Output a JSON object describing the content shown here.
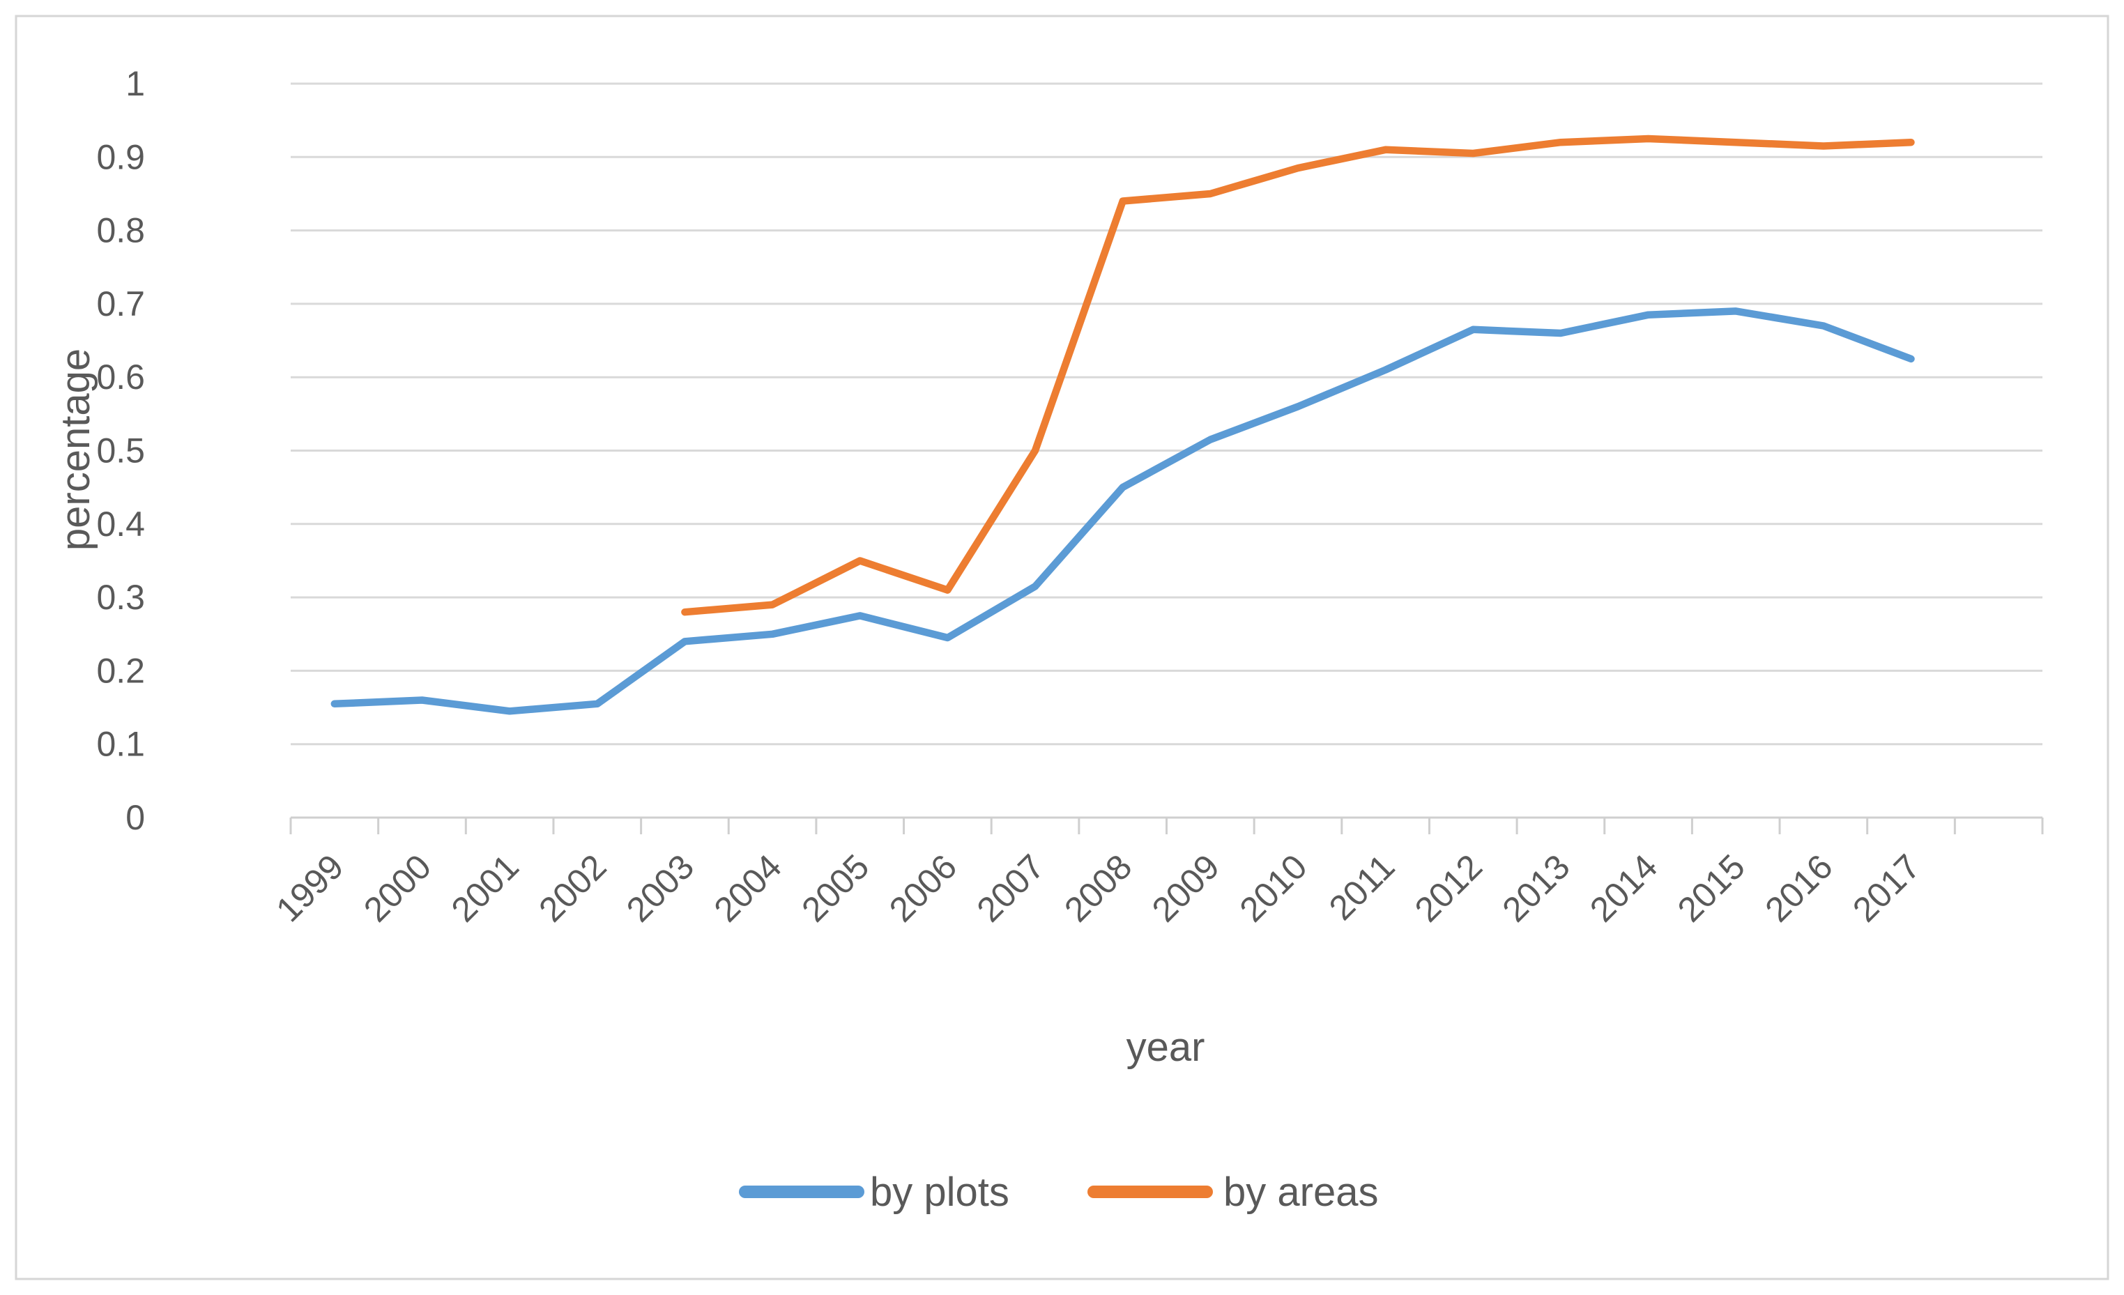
{
  "figure": {
    "background": "#ffffff",
    "border_color": "#d6d6d6"
  },
  "chart_data": {
    "type": "line",
    "title": "",
    "xlabel": "year",
    "ylabel": "percentage",
    "categories": [
      "1999",
      "2000",
      "2001",
      "2002",
      "2003",
      "2004",
      "2005",
      "2006",
      "2007",
      "2008",
      "2009",
      "2010",
      "2011",
      "2012",
      "2013",
      "2014",
      "2015",
      "2016",
      "2017"
    ],
    "series": [
      {
        "name": "by plots",
        "color": "#5B9BD5",
        "values": [
          0.155,
          0.16,
          0.145,
          0.155,
          0.24,
          0.25,
          0.275,
          0.245,
          0.315,
          0.45,
          0.515,
          0.56,
          0.61,
          0.665,
          0.66,
          0.685,
          0.69,
          0.67,
          0.625
        ]
      },
      {
        "name": "by areas",
        "color": "#ED7D31",
        "values": [
          null,
          null,
          null,
          null,
          0.28,
          0.29,
          0.35,
          0.31,
          0.5,
          0.84,
          0.85,
          0.885,
          0.91,
          0.905,
          0.92,
          0.925,
          0.92,
          0.915,
          0.92
        ]
      }
    ],
    "ylim": [
      0,
      1
    ],
    "ytick_step": 0.1,
    "ytick_labels": [
      "0",
      "0.1",
      "0.2",
      "0.3",
      "0.4",
      "0.5",
      "0.6",
      "0.7",
      "0.8",
      "0.9",
      "1"
    ],
    "grid": "horizontal-only",
    "gridline_color": "#D9D9D9",
    "axis_line_color": "#CFCFCF",
    "text_color": "#595959",
    "legend_position": "bottom",
    "x_label_rotation_deg": -45
  }
}
